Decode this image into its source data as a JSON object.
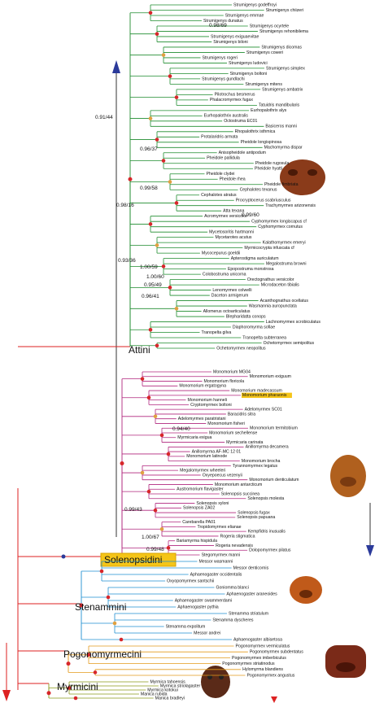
{
  "clades": [
    {
      "name": "Attini",
      "color": "#1e8c2e",
      "taxa": [
        "Strumigenys godeffroyi",
        "Strumigenys chiizeri",
        "Strumigenys emmae",
        "Strumigenys dunatus",
        "Strumigenys ocyrtele",
        "Strumigenys rehonibilema",
        "Strumigenys exiguaevitae",
        "Strumigenys biloni",
        "Strumigenys dicomas",
        "Strumigenys coweri",
        "Strumigenys rogeri",
        "Strumigenys ludovici",
        "Strumigenys simplex",
        "Strumigenys boltoni",
        "Strumigenys gundlachi",
        "Strumigenys mitens",
        "Strumigenys ambatrix",
        "Pilotrochus besmerus",
        "Phalacromyrmex fugax",
        "Tatuidris mandibularis",
        "Eurhopalothrix alys",
        "Eurhopalothrix australis",
        "Octostruma EC01",
        "Basiceros manni",
        "Rhopalothrix isthmica",
        "Protalaridris armata",
        "Pheidole longispinosa",
        "Machomyrma dispar",
        "Anisopheidole antipodum",
        "Pheidole pallidula",
        "Pheidole rugosula",
        "Pheidole hyatti",
        "Pheidole clydei",
        "Pheidole rhea",
        "Pheidole fimbriata",
        "Cephalotes texanus",
        "Cephalotes atratus",
        "Procryptocerus scabriusculus",
        "Trachymyrmex arizonensis",
        "Atta texana",
        "Acromyrmex versicolor",
        "Cyphomyrmex longiscapus cf",
        "Cyphomyrmex cornutus",
        "Mycetosoritis hartmanni",
        "Mycetarotes acutus",
        "Kalathomyrmex emeryi",
        "Myrmicocrypta infuscata cf",
        "Mycocepurus goeldii",
        "Apterostigma auriculatum",
        "Megalostruma browni",
        "Epopostruma monstrosa",
        "Colobostruma unicorna",
        "Orectognathus versicolor",
        "Microdaceton tibialis",
        "Lenomyrmex colwelli",
        "Daceton armigerum",
        "Acanthognathus ocellatus",
        "Wasmannia auropunctata",
        "Allomerus octoarticulatus",
        "Blepharidatta conops",
        "Lachnomyrmex scrobiculatus",
        "Diaphoromyrma sofiae",
        "Tranopelta gilva",
        "Tranopelta subterranea",
        "Ochetomyrmex semipolitus",
        "Ochetomyrmex neopolitus"
      ]
    },
    {
      "name": "Solenopsidini",
      "color": "#b0267e",
      "taxa": [
        "Monomorium MG04",
        "Monomorium exiguum",
        "Monomorium floricola",
        "Monomorium ergatogyna",
        "Monomorium madecassum",
        "Monomorium pharaonis",
        "Monomorium hanneli",
        "Cryptomyrmex boltoni",
        "Adelomyrmex SC01",
        "Baracidris sitra",
        "Adelomyrmex paratristani",
        "Monomorium fisheri",
        "Monomorium termitobium",
        "Monomorium sechellense",
        "Myrmicaria exigua",
        "Myrmicaria carinata",
        "Anillomyrma decamera",
        "Anillomyrma AF-MC 12 01",
        "Monomorium latinode",
        "Monomorium brocha",
        "Tyrannomyrmex legatus",
        "Megalomyrmex wheeleri",
        "Oxyepoecus vezenyii",
        "Monomorium denticulatum",
        "Monomorium antarcticum",
        "Austromorium flavigaster",
        "Solenopsis succinea",
        "Solenopsis molesta",
        "Solenopsis xyloni",
        "Solenopsis ZA02",
        "Solenopsis fugax",
        "Solenopsis papuana",
        "Carebarella PA01",
        "Tropidomyrmex elianae",
        "Kempfidris inusualis",
        "Rogeria stigmatica",
        "Bariamyrma hispidula",
        "Rogeria nevadensis",
        "Dolopomyrmex pilatus",
        "Stegomyrmex manni"
      ]
    },
    {
      "name": "Stenammini",
      "color": "#1f8fd0",
      "taxa": [
        "Messor wasmanni",
        "Messor denticornis",
        "Aphaenogaster occidentalis",
        "Oxyopomyrmex santschii",
        "Goniomma blanci",
        "Aphaenogaster araneoides",
        "Aphaenogaster swammerdami",
        "Aphaenogaster pythia",
        "Stenamma striatulum",
        "Stenamma dyscheres",
        "Stenamma expolitum",
        "Messor andrei",
        "Aphaenogaster albisetosa"
      ]
    },
    {
      "name": "Pogonomyrmecini",
      "color": "#e39a1c",
      "taxa": [
        "Pogonomyrmex vermiculatus",
        "Pogonomyrmex subdentatus",
        "Pogonomyrmex imberbiculus",
        "Pogonomyrmex striatinodus",
        "Hylomyrma blandiens",
        "Pogonomyrmex angustus"
      ]
    },
    {
      "name": "Myrmicini",
      "color": "#8a9a1a",
      "taxa": [
        "Myrmica tahoensis",
        "Myrmica striolagaster",
        "Myrmica kotokui",
        "Manica rubida",
        "Manica bradleyi"
      ]
    }
  ],
  "support": [
    "0.98/69",
    "0.91/44",
    "0.96/37",
    "0.99/58",
    "0.98/16",
    "0.93/36",
    "0.99/60",
    "1.00/59",
    "1.00/60",
    "0.95/49",
    "0.96/41",
    "0.94/40",
    "0.99/43",
    "1.00/67",
    "0.99/48"
  ]
}
